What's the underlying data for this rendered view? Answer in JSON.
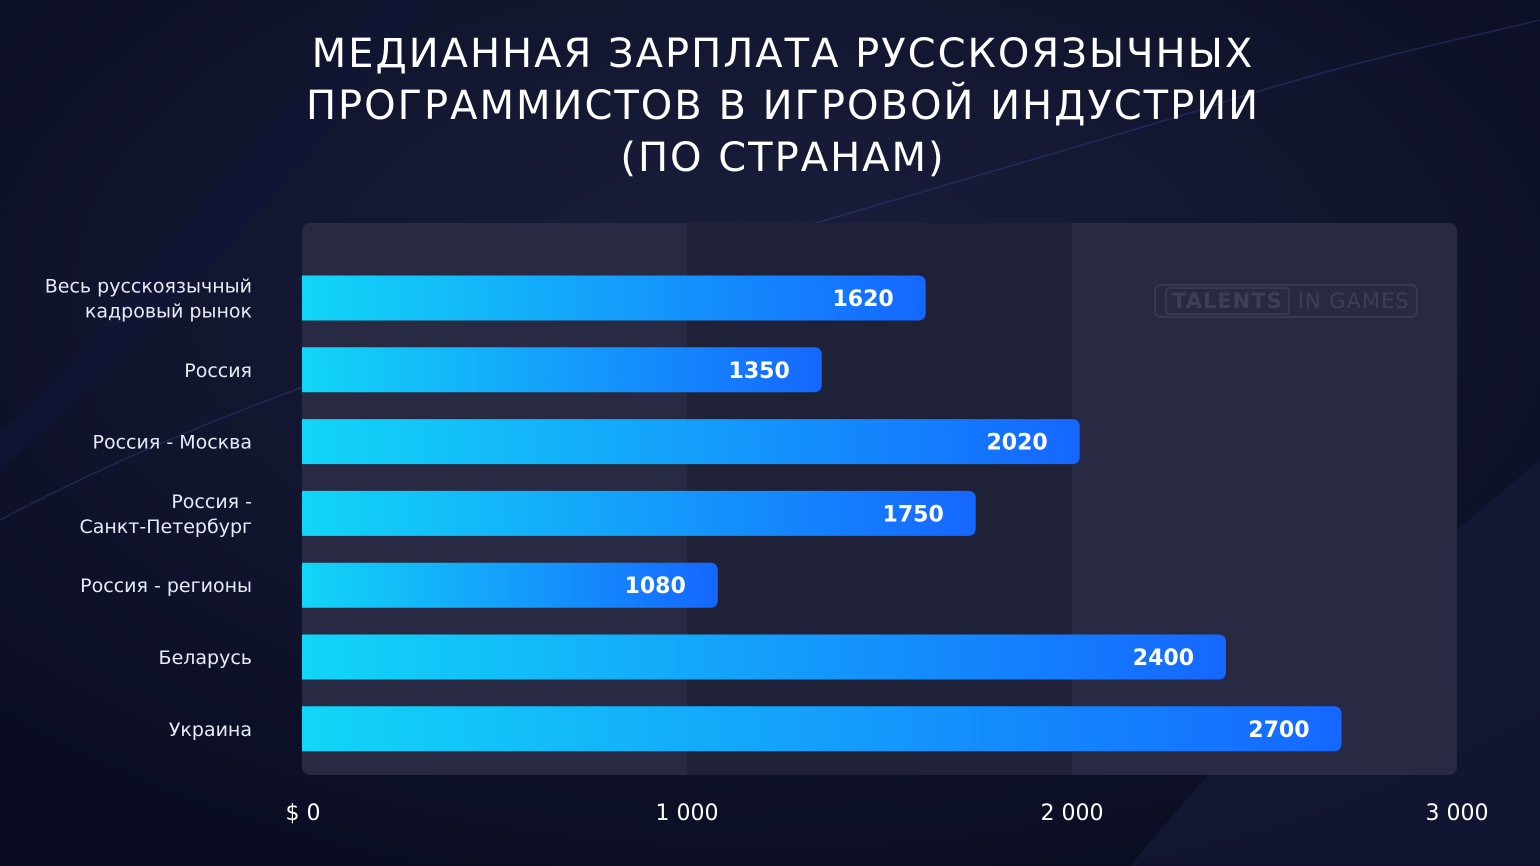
{
  "title_lines": [
    "МЕДИАННАЯ ЗАРПЛАТА РУССКОЯЗЫЧНЫХ",
    "ПРОГРАММИСТОВ В ИГРОВОЙ ИНДУСТРИИ",
    "(ПО СТРАНАМ)"
  ],
  "watermark": {
    "part1": "TALENTS",
    "part2": "IN GAMES"
  },
  "colors": {
    "background": "#0c1027",
    "plot_panel": "#272a42",
    "bar_start": "#12d6f7",
    "bar_end": "#1567ff",
    "text": "#ffffff"
  },
  "chart_data": {
    "type": "bar",
    "orientation": "horizontal",
    "title": "МЕДИАННАЯ ЗАРПЛАТА РУССКОЯЗЫЧНЫХ ПРОГРАММИСТОВ В ИГРОВОЙ ИНДУСТРИИ (ПО СТРАНАМ)",
    "categories": [
      [
        "Весь русскоязычный",
        "кадровый рынок"
      ],
      [
        "Россия"
      ],
      [
        "Россия - Москва"
      ],
      [
        "Россия -",
        "Санкт-Петербург"
      ],
      [
        "Россия - регионы"
      ],
      [
        "Беларусь"
      ],
      [
        "Украина"
      ]
    ],
    "values": [
      1620,
      1350,
      2020,
      1750,
      1080,
      2400,
      2700
    ],
    "value_labels": [
      "1620",
      "1350",
      "2020",
      "1750",
      "1080",
      "2400",
      "2700"
    ],
    "xlim": [
      0,
      3000
    ],
    "xticks": [
      0,
      1000,
      2000,
      3000
    ],
    "xtick_labels": [
      "$ 0",
      "1 000",
      "2 000",
      "3 000"
    ],
    "grid": "alternating vertical bands",
    "legend": "none"
  }
}
